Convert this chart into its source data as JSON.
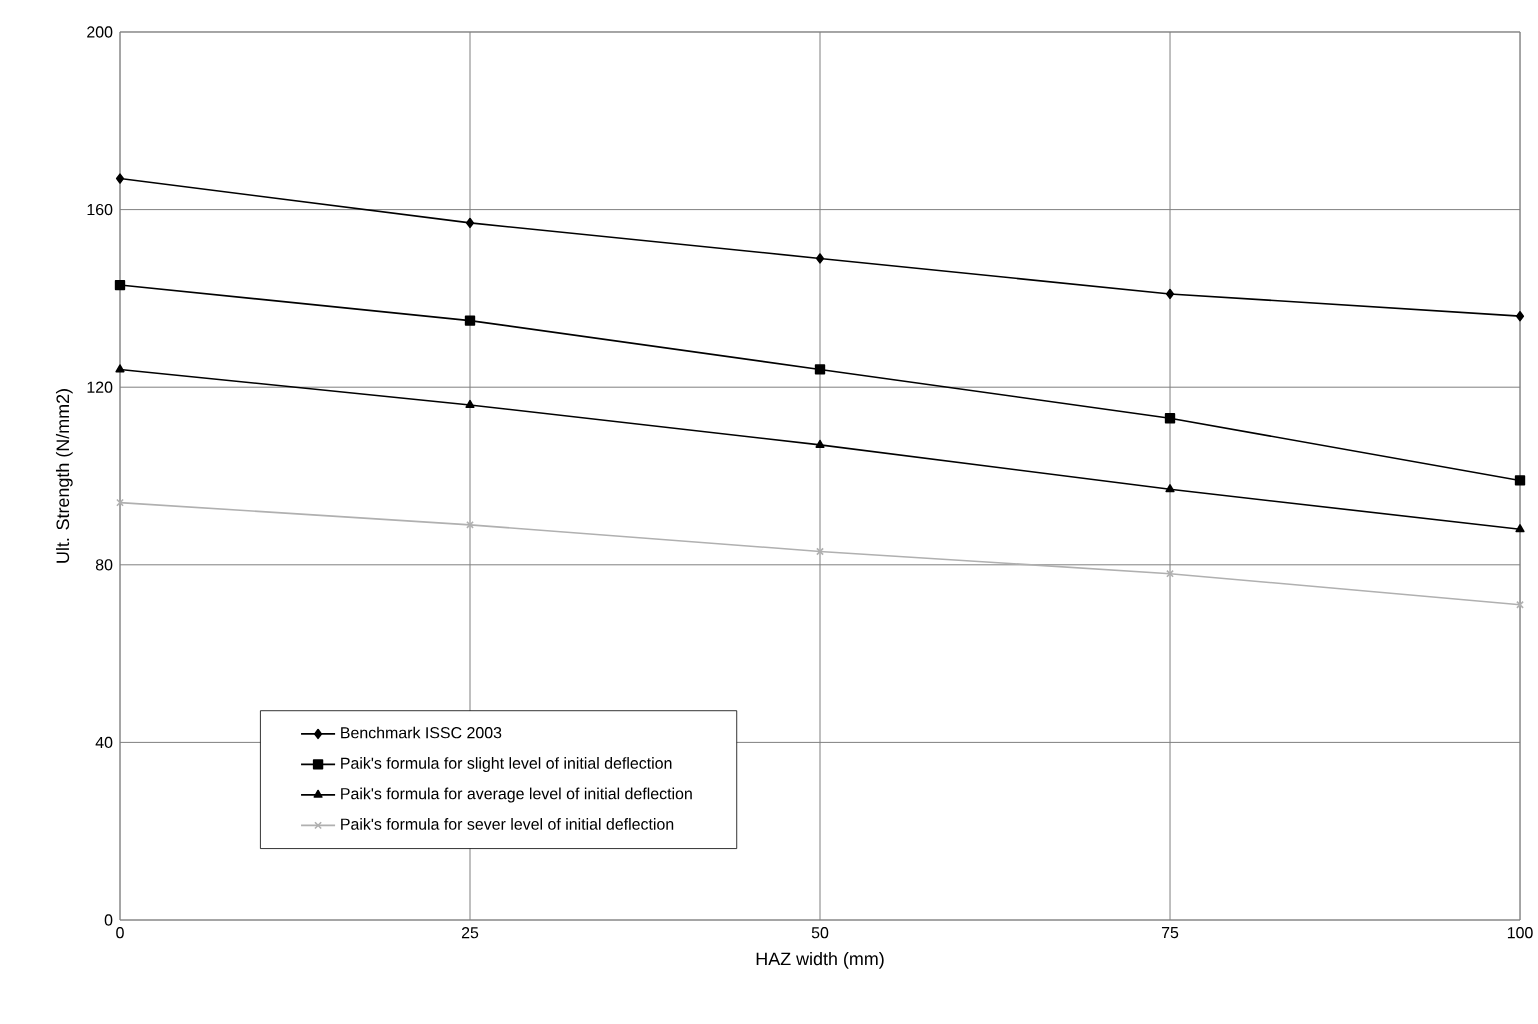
{
  "chart_data": {
    "type": "line",
    "xlabel": "HAZ width (mm)",
    "ylabel": "Ult. Strength (N/mm2)",
    "x": [
      0,
      25,
      50,
      75,
      100
    ],
    "series": [
      {
        "name": "Benchmark ISSC 2003",
        "color": "#000000",
        "marker": "diamond",
        "values": [
          167,
          157,
          149,
          141,
          136
        ]
      },
      {
        "name": "Paik's formula for slight level of initial deflection",
        "color": "#000000",
        "marker": "square",
        "values": [
          143,
          135,
          124,
          113,
          99
        ]
      },
      {
        "name": "Paik's formula for average level of initial deflection",
        "color": "#000000",
        "marker": "triangle",
        "values": [
          124,
          116,
          107,
          97,
          88
        ]
      },
      {
        "name": "Paik's formula for sever level of initial deflection",
        "color": "#b0b0b0",
        "marker": "cross",
        "values": [
          94,
          89,
          83,
          78,
          71
        ]
      }
    ],
    "xlim": [
      0,
      100
    ],
    "xticks": [
      0,
      25,
      50,
      75,
      100
    ],
    "ylim": [
      0,
      200
    ],
    "yticks": [
      0,
      40,
      80,
      120,
      160,
      200
    ],
    "grid": true,
    "legend": "bottom left",
    "line_style": "solid"
  }
}
